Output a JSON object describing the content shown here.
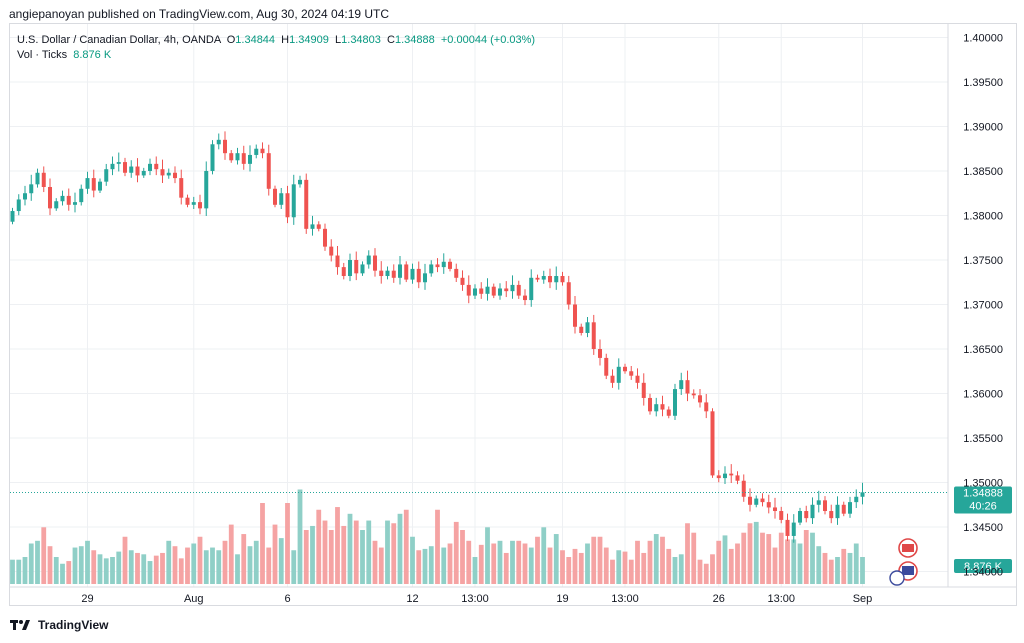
{
  "header": {
    "publisher_text": "angiepanoyan published on TradingView.com, Aug 30, 2024 04:19 UTC"
  },
  "legend": {
    "symbol": "U.S. Dollar / Canadian Dollar, 4h, OANDA",
    "o_label": "O",
    "o_value": "1.34844",
    "h_label": "H",
    "h_value": "1.34909",
    "l_label": "L",
    "l_value": "1.34803",
    "c_label": "C",
    "c_value": "1.34888",
    "change": "+0.00044 (+0.03%)",
    "vol_label": "Vol · Ticks",
    "vol_value": "8.876 K"
  },
  "footer": {
    "brand": "TradingView"
  },
  "colors": {
    "up": "#26a69a",
    "down": "#ef5350",
    "vol_up": "#8fcfc7",
    "vol_down": "#f5a3a3",
    "grid": "#eef0f3",
    "text": "#131722",
    "axis_text": "#131722"
  },
  "chart_data": {
    "type": "candlestick",
    "title": "U.S. Dollar / Canadian Dollar, 4h, OANDA",
    "ylim": [
      1.3395,
      1.4005
    ],
    "y_ticks": [
      "1.40000",
      "1.39500",
      "1.39000",
      "1.38500",
      "1.38000",
      "1.37500",
      "1.37000",
      "1.36500",
      "1.36000",
      "1.35500",
      "1.35000",
      "1.34500",
      "1.34000"
    ],
    "x_tick_labels": [
      "29",
      "Aug",
      "6",
      "12",
      "13:00",
      "19",
      "13:00",
      "26",
      "13:00",
      "Sep"
    ],
    "x_tick_bar_index": [
      12,
      29,
      44,
      64,
      74,
      88,
      98,
      113,
      123,
      136
    ],
    "last_price_label": "1.34888",
    "countdown_label": "40:26",
    "volume_label": "8.876 K",
    "grid": true,
    "closes": [
      1.3805,
      1.3818,
      1.3825,
      1.3835,
      1.3848,
      1.3832,
      1.3808,
      1.3816,
      1.3822,
      1.3812,
      1.3815,
      1.383,
      1.3842,
      1.3828,
      1.3838,
      1.3852,
      1.3858,
      1.386,
      1.3848,
      1.3855,
      1.3845,
      1.385,
      1.3858,
      1.3852,
      1.3845,
      1.3848,
      1.3842,
      1.382,
      1.3812,
      1.3815,
      1.3808,
      1.385,
      1.388,
      1.3885,
      1.387,
      1.3862,
      1.387,
      1.3858,
      1.3868,
      1.3875,
      1.387,
      1.383,
      1.3812,
      1.3825,
      1.3798,
      1.3835,
      1.384,
      1.3785,
      1.379,
      1.3785,
      1.3765,
      1.3755,
      1.3742,
      1.3732,
      1.375,
      1.3735,
      1.3745,
      1.3755,
      1.3738,
      1.3732,
      1.3738,
      1.373,
      1.3745,
      1.3728,
      1.374,
      1.3725,
      1.3735,
      1.3745,
      1.3742,
      1.3748,
      1.374,
      1.373,
      1.3722,
      1.371,
      1.3718,
      1.3712,
      1.372,
      1.371,
      1.3718,
      1.3715,
      1.3722,
      1.371,
      1.3705,
      1.373,
      1.3728,
      1.3732,
      1.3725,
      1.3732,
      1.3725,
      1.37,
      1.3675,
      1.3668,
      1.368,
      1.365,
      1.364,
      1.362,
      1.3612,
      1.363,
      1.3625,
      1.362,
      1.3612,
      1.3595,
      1.358,
      1.3588,
      1.3582,
      1.3575,
      1.3605,
      1.3615,
      1.36,
      1.3598,
      1.359,
      1.358,
      1.3508,
      1.3505,
      1.351,
      1.3508,
      1.3502,
      1.3484,
      1.3475,
      1.3482,
      1.3478,
      1.3472,
      1.3468,
      1.3458,
      1.344,
      1.3455,
      1.3468,
      1.346,
      1.3475,
      1.348,
      1.3468,
      1.346,
      1.3475,
      1.3465,
      1.3478,
      1.3484,
      1.3489
    ],
    "volumes": [
      18,
      18,
      20,
      30,
      32,
      42,
      28,
      20,
      15,
      17,
      27,
      28,
      32,
      25,
      22,
      19,
      20,
      24,
      35,
      25,
      23,
      22,
      17,
      21,
      23,
      32,
      28,
      19,
      27,
      30,
      35,
      25,
      27,
      25,
      32,
      44,
      22,
      37,
      28,
      32,
      60,
      27,
      44,
      34,
      60,
      25,
      70,
      40,
      43,
      55,
      47,
      40,
      57,
      43,
      52,
      47,
      40,
      47,
      32,
      27,
      47,
      45,
      52,
      55,
      35,
      25,
      26,
      28,
      55,
      27,
      30,
      46,
      40,
      32,
      20,
      29,
      42,
      30,
      32,
      23,
      32,
      32,
      30,
      27,
      35,
      42,
      27,
      37,
      25,
      20,
      26,
      23,
      30,
      35,
      35,
      27,
      18,
      25,
      24,
      18,
      32,
      23,
      32,
      37,
      35,
      26,
      20,
      22,
      45,
      38,
      18,
      15,
      22,
      32,
      36,
      26,
      30,
      38,
      45,
      46,
      38,
      37,
      27,
      38,
      33,
      33,
      30,
      40,
      38,
      28,
      23,
      18,
      20,
      26,
      23,
      30,
      20
    ]
  }
}
